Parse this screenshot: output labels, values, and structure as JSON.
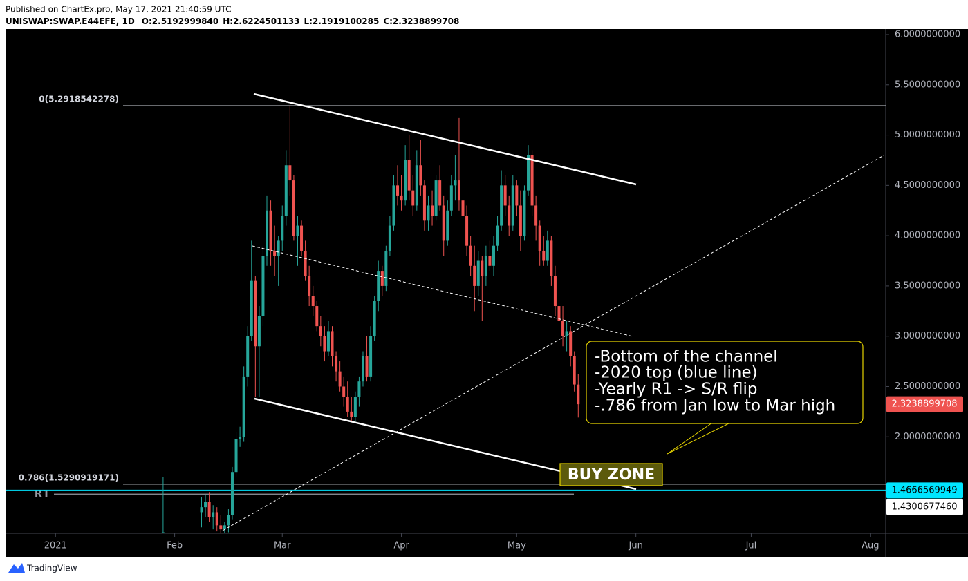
{
  "header": {
    "published": "Published on ChartEx.pro, May 17, 2021 21:40:59 UTC",
    "symbol": "UNISWAP:SWAP.E44EFE, 1D",
    "ohlc": [
      "O:2.5192999840",
      "H:2.6224501133",
      "L:2.1919100285",
      "C:2.3238899708"
    ]
  },
  "chart_data": {
    "type": "candlestick",
    "up_color": "#26a69a",
    "down_color": "#ef5350",
    "xlim": [
      "2020-12-19",
      "2021-08-05"
    ],
    "ylim": [
      1.04,
      6.055
    ],
    "xticks": [
      {
        "value": "2021-01-01",
        "label": "2021"
      },
      {
        "value": "2021-02-01",
        "label": "Feb"
      },
      {
        "value": "2021-03-01",
        "label": "Mar"
      },
      {
        "value": "2021-04-01",
        "label": "Apr"
      },
      {
        "value": "2021-05-01",
        "label": "May"
      },
      {
        "value": "2021-06-01",
        "label": "Jun"
      },
      {
        "value": "2021-07-01",
        "label": "Jul"
      },
      {
        "value": "2021-08-01",
        "label": "Aug"
      }
    ],
    "yticks": [
      {
        "value": 2,
        "label": "2.0000000000"
      },
      {
        "value": 2.5,
        "label": "2.5000000000"
      },
      {
        "value": 3,
        "label": "3.0000000000"
      },
      {
        "value": 3.5,
        "label": "3.5000000000"
      },
      {
        "value": 4,
        "label": "4.0000000000"
      },
      {
        "value": 4.5,
        "label": "4.5000000000"
      },
      {
        "value": 5,
        "label": "5.0000000000"
      },
      {
        "value": 5.5,
        "label": "5.5000000000"
      },
      {
        "value": 6,
        "label": "6.0000000000"
      }
    ],
    "levels": [
      {
        "label": "0(5.2918542278)",
        "value": 5.2918542278,
        "color": "#d1d4dc"
      },
      {
        "label": "0.786(1.5290919171)",
        "value": 1.5290919171,
        "color": "#d1d4dc"
      },
      {
        "label": "R1",
        "value": 1.430067746,
        "color": "#9598a1"
      }
    ],
    "price_tags": [
      {
        "value": 2.3238899708,
        "label": "2.3238899708",
        "color": "#ef5350",
        "text_color": "#ffffff"
      },
      {
        "value": 1.4666569949,
        "label": "1.4666569949",
        "color": "#00e5ff",
        "text_color": "#000000"
      },
      {
        "value": 1.430067746,
        "label": "1.4300677460",
        "color": "#ffffff",
        "text_color": "#000000"
      }
    ],
    "candles": [
      {
        "date": "2021-01-29",
        "open": 1.02,
        "high": 1.6,
        "low": 1.0,
        "close": 1.05
      },
      {
        "date": "2021-02-08",
        "open": 1.25,
        "high": 1.4,
        "low": 1.1,
        "close": 1.3
      },
      {
        "date": "2021-02-09",
        "open": 1.3,
        "high": 1.42,
        "low": 1.2,
        "close": 1.35
      },
      {
        "date": "2021-02-10",
        "open": 1.35,
        "high": 1.45,
        "low": 1.15,
        "close": 1.2
      },
      {
        "date": "2021-02-11",
        "open": 1.2,
        "high": 1.32,
        "low": 1.08,
        "close": 1.25
      },
      {
        "date": "2021-02-12",
        "open": 1.25,
        "high": 1.3,
        "low": 1.06,
        "close": 1.12
      },
      {
        "date": "2021-02-13",
        "open": 1.12,
        "high": 1.22,
        "low": 1.02,
        "close": 1.08
      },
      {
        "date": "2021-02-14",
        "open": 1.08,
        "high": 1.15,
        "low": 1.0,
        "close": 1.12
      },
      {
        "date": "2021-02-15",
        "open": 1.12,
        "high": 1.28,
        "low": 1.05,
        "close": 1.22
      },
      {
        "date": "2021-02-16",
        "open": 1.22,
        "high": 1.7,
        "low": 1.18,
        "close": 1.65
      },
      {
        "date": "2021-02-17",
        "open": 1.65,
        "high": 2.05,
        "low": 1.6,
        "close": 1.98
      },
      {
        "date": "2021-02-18",
        "open": 1.98,
        "high": 2.1,
        "low": 1.9,
        "close": 2.0
      },
      {
        "date": "2021-02-19",
        "open": 2.0,
        "high": 2.7,
        "low": 1.95,
        "close": 2.6
      },
      {
        "date": "2021-02-20",
        "open": 2.6,
        "high": 3.1,
        "low": 2.5,
        "close": 3.0
      },
      {
        "date": "2021-02-21",
        "open": 3.0,
        "high": 3.95,
        "low": 2.95,
        "close": 3.55
      },
      {
        "date": "2021-02-22",
        "open": 3.55,
        "high": 3.6,
        "low": 2.4,
        "close": 2.9
      },
      {
        "date": "2021-02-23",
        "open": 2.9,
        "high": 3.3,
        "low": 2.4,
        "close": 3.2
      },
      {
        "date": "2021-02-24",
        "open": 3.2,
        "high": 3.9,
        "low": 3.1,
        "close": 3.8
      },
      {
        "date": "2021-02-25",
        "open": 3.8,
        "high": 4.4,
        "low": 3.7,
        "close": 4.25
      },
      {
        "date": "2021-02-26",
        "open": 4.25,
        "high": 4.35,
        "low": 3.7,
        "close": 3.85
      },
      {
        "date": "2021-02-27",
        "open": 3.85,
        "high": 4.1,
        "low": 3.6,
        "close": 3.8
      },
      {
        "date": "2021-02-28",
        "open": 3.8,
        "high": 4.0,
        "low": 3.5,
        "close": 3.95
      },
      {
        "date": "2021-03-01",
        "open": 3.95,
        "high": 4.3,
        "low": 3.85,
        "close": 4.2
      },
      {
        "date": "2021-03-02",
        "open": 4.2,
        "high": 4.85,
        "low": 4.1,
        "close": 4.7
      },
      {
        "date": "2021-03-03",
        "open": 4.7,
        "high": 5.29,
        "low": 4.4,
        "close": 4.55
      },
      {
        "date": "2021-03-04",
        "open": 4.55,
        "high": 4.6,
        "low": 3.95,
        "close": 4.0
      },
      {
        "date": "2021-03-05",
        "open": 4.0,
        "high": 4.2,
        "low": 3.7,
        "close": 4.1
      },
      {
        "date": "2021-03-06",
        "open": 4.1,
        "high": 4.15,
        "low": 3.8,
        "close": 3.85
      },
      {
        "date": "2021-03-07",
        "open": 3.85,
        "high": 3.95,
        "low": 3.55,
        "close": 3.6
      },
      {
        "date": "2021-03-08",
        "open": 3.6,
        "high": 3.7,
        "low": 3.3,
        "close": 3.4
      },
      {
        "date": "2021-03-09",
        "open": 3.4,
        "high": 3.5,
        "low": 3.2,
        "close": 3.3
      },
      {
        "date": "2021-03-10",
        "open": 3.3,
        "high": 3.35,
        "low": 3.05,
        "close": 3.1
      },
      {
        "date": "2021-03-11",
        "open": 3.1,
        "high": 3.2,
        "low": 2.9,
        "close": 3.0
      },
      {
        "date": "2021-03-12",
        "open": 3.0,
        "high": 3.1,
        "low": 2.75,
        "close": 2.85
      },
      {
        "date": "2021-03-13",
        "open": 2.85,
        "high": 3.15,
        "low": 2.8,
        "close": 3.05
      },
      {
        "date": "2021-03-14",
        "open": 3.05,
        "high": 3.1,
        "low": 2.7,
        "close": 2.8
      },
      {
        "date": "2021-03-15",
        "open": 2.8,
        "high": 2.85,
        "low": 2.55,
        "close": 2.65
      },
      {
        "date": "2021-03-16",
        "open": 2.65,
        "high": 2.75,
        "low": 2.45,
        "close": 2.5
      },
      {
        "date": "2021-03-17",
        "open": 2.5,
        "high": 2.6,
        "low": 2.3,
        "close": 2.4
      },
      {
        "date": "2021-03-18",
        "open": 2.4,
        "high": 2.55,
        "low": 2.2,
        "close": 2.25
      },
      {
        "date": "2021-03-19",
        "open": 2.25,
        "high": 2.4,
        "low": 2.15,
        "close": 2.2
      },
      {
        "date": "2021-03-20",
        "open": 2.2,
        "high": 2.45,
        "low": 2.15,
        "close": 2.4
      },
      {
        "date": "2021-03-21",
        "open": 2.4,
        "high": 2.6,
        "low": 2.3,
        "close": 2.55
      },
      {
        "date": "2021-03-22",
        "open": 2.55,
        "high": 2.85,
        "low": 2.5,
        "close": 2.8
      },
      {
        "date": "2021-03-23",
        "open": 2.8,
        "high": 3.0,
        "low": 2.55,
        "close": 2.6
      },
      {
        "date": "2021-03-24",
        "open": 2.6,
        "high": 3.1,
        "low": 2.55,
        "close": 3.0
      },
      {
        "date": "2021-03-25",
        "open": 3.0,
        "high": 3.4,
        "low": 2.95,
        "close": 3.35
      },
      {
        "date": "2021-03-26",
        "open": 3.35,
        "high": 3.75,
        "low": 3.25,
        "close": 3.65
      },
      {
        "date": "2021-03-27",
        "open": 3.65,
        "high": 3.7,
        "low": 3.4,
        "close": 3.5
      },
      {
        "date": "2021-03-28",
        "open": 3.5,
        "high": 3.9,
        "low": 3.45,
        "close": 3.85
      },
      {
        "date": "2021-03-29",
        "open": 3.85,
        "high": 4.2,
        "low": 3.8,
        "close": 4.1
      },
      {
        "date": "2021-03-30",
        "open": 4.1,
        "high": 4.6,
        "low": 4.05,
        "close": 4.5
      },
      {
        "date": "2021-03-31",
        "open": 4.5,
        "high": 4.7,
        "low": 4.3,
        "close": 4.4
      },
      {
        "date": "2021-04-01",
        "open": 4.4,
        "high": 4.6,
        "low": 4.25,
        "close": 4.35
      },
      {
        "date": "2021-04-02",
        "open": 4.35,
        "high": 4.9,
        "low": 4.3,
        "close": 4.75
      },
      {
        "date": "2021-04-03",
        "open": 4.75,
        "high": 5.0,
        "low": 4.35,
        "close": 4.45
      },
      {
        "date": "2021-04-04",
        "open": 4.45,
        "high": 4.6,
        "low": 4.2,
        "close": 4.3
      },
      {
        "date": "2021-04-05",
        "open": 4.3,
        "high": 4.85,
        "low": 4.25,
        "close": 4.7
      },
      {
        "date": "2021-04-06",
        "open": 4.7,
        "high": 4.95,
        "low": 4.4,
        "close": 4.5
      },
      {
        "date": "2021-04-07",
        "open": 4.5,
        "high": 4.55,
        "low": 4.05,
        "close": 4.15
      },
      {
        "date": "2021-04-08",
        "open": 4.15,
        "high": 4.4,
        "low": 4.05,
        "close": 4.3
      },
      {
        "date": "2021-04-09",
        "open": 4.3,
        "high": 4.45,
        "low": 4.1,
        "close": 4.2
      },
      {
        "date": "2021-04-10",
        "open": 4.2,
        "high": 4.6,
        "low": 4.15,
        "close": 4.55
      },
      {
        "date": "2021-04-11",
        "open": 4.55,
        "high": 4.7,
        "low": 4.25,
        "close": 4.3
      },
      {
        "date": "2021-04-12",
        "open": 4.3,
        "high": 4.4,
        "low": 3.8,
        "close": 3.95
      },
      {
        "date": "2021-04-13",
        "open": 3.95,
        "high": 4.35,
        "low": 3.9,
        "close": 4.25
      },
      {
        "date": "2021-04-14",
        "open": 4.25,
        "high": 4.6,
        "low": 4.2,
        "close": 4.5
      },
      {
        "date": "2021-04-15",
        "open": 4.5,
        "high": 4.8,
        "low": 4.35,
        "close": 4.55
      },
      {
        "date": "2021-04-16",
        "open": 4.55,
        "high": 5.17,
        "low": 4.25,
        "close": 4.35
      },
      {
        "date": "2021-04-17",
        "open": 4.35,
        "high": 4.5,
        "low": 4.1,
        "close": 4.2
      },
      {
        "date": "2021-04-18",
        "open": 4.2,
        "high": 4.3,
        "low": 3.8,
        "close": 3.9
      },
      {
        "date": "2021-04-19",
        "open": 3.9,
        "high": 4.0,
        "low": 3.6,
        "close": 3.7
      },
      {
        "date": "2021-04-20",
        "open": 3.7,
        "high": 3.9,
        "low": 3.25,
        "close": 3.5
      },
      {
        "date": "2021-04-21",
        "open": 3.5,
        "high": 3.85,
        "low": 3.4,
        "close": 3.75
      },
      {
        "date": "2021-04-22",
        "open": 3.75,
        "high": 3.8,
        "low": 3.15,
        "close": 3.6
      },
      {
        "date": "2021-04-23",
        "open": 3.6,
        "high": 3.9,
        "low": 3.5,
        "close": 3.8
      },
      {
        "date": "2021-04-24",
        "open": 3.8,
        "high": 3.95,
        "low": 3.65,
        "close": 3.7
      },
      {
        "date": "2021-04-25",
        "open": 3.7,
        "high": 4.0,
        "low": 3.6,
        "close": 3.9
      },
      {
        "date": "2021-04-26",
        "open": 3.9,
        "high": 4.2,
        "low": 3.85,
        "close": 4.1
      },
      {
        "date": "2021-04-27",
        "open": 4.1,
        "high": 4.65,
        "low": 4.05,
        "close": 4.5
      },
      {
        "date": "2021-04-28",
        "open": 4.5,
        "high": 4.6,
        "low": 4.2,
        "close": 4.3
      },
      {
        "date": "2021-04-29",
        "open": 4.3,
        "high": 4.4,
        "low": 4.0,
        "close": 4.1
      },
      {
        "date": "2021-04-30",
        "open": 4.1,
        "high": 4.6,
        "low": 4.05,
        "close": 4.5
      },
      {
        "date": "2021-05-01",
        "open": 4.5,
        "high": 4.55,
        "low": 4.2,
        "close": 4.3
      },
      {
        "date": "2021-05-02",
        "open": 4.3,
        "high": 4.45,
        "low": 3.85,
        "close": 4.0
      },
      {
        "date": "2021-05-03",
        "open": 4.0,
        "high": 4.5,
        "low": 3.95,
        "close": 4.45
      },
      {
        "date": "2021-05-04",
        "open": 4.45,
        "high": 4.9,
        "low": 4.4,
        "close": 4.8
      },
      {
        "date": "2021-05-05",
        "open": 4.8,
        "high": 4.85,
        "low": 4.2,
        "close": 4.3
      },
      {
        "date": "2021-05-06",
        "open": 4.3,
        "high": 4.4,
        "low": 3.95,
        "close": 4.1
      },
      {
        "date": "2021-05-07",
        "open": 4.1,
        "high": 4.15,
        "low": 3.7,
        "close": 3.85
      },
      {
        "date": "2021-05-08",
        "open": 3.85,
        "high": 4.0,
        "low": 3.7,
        "close": 3.75
      },
      {
        "date": "2021-05-09",
        "open": 3.75,
        "high": 4.05,
        "low": 3.7,
        "close": 3.95
      },
      {
        "date": "2021-05-10",
        "open": 3.95,
        "high": 4.0,
        "low": 3.5,
        "close": 3.6
      },
      {
        "date": "2021-05-11",
        "open": 3.6,
        "high": 3.7,
        "low": 3.2,
        "close": 3.3
      },
      {
        "date": "2021-05-12",
        "open": 3.3,
        "high": 3.4,
        "low": 3.1,
        "close": 3.15
      },
      {
        "date": "2021-05-13",
        "open": 3.15,
        "high": 3.3,
        "low": 2.9,
        "close": 3.0
      },
      {
        "date": "2021-05-14",
        "open": 3.0,
        "high": 3.15,
        "low": 2.85,
        "close": 3.05
      },
      {
        "date": "2021-05-15",
        "open": 3.05,
        "high": 3.1,
        "low": 2.7,
        "close": 2.8
      },
      {
        "date": "2021-05-16",
        "open": 2.8,
        "high": 2.85,
        "low": 2.45,
        "close": 2.52
      },
      {
        "date": "2021-05-17",
        "open": 2.519299984,
        "high": 2.6224501133,
        "low": 2.1919100285,
        "close": 2.3238899708
      }
    ],
    "annotation": {
      "lines": [
        "-Bottom of the channel",
        "-2020 top (blue line)",
        "-Yearly R1 -> S/R flip",
        "-.786 from Jan low to Mar high"
      ],
      "buy_zone": "BUY ZONE"
    }
  },
  "footer": {
    "brand": "TradingView"
  }
}
